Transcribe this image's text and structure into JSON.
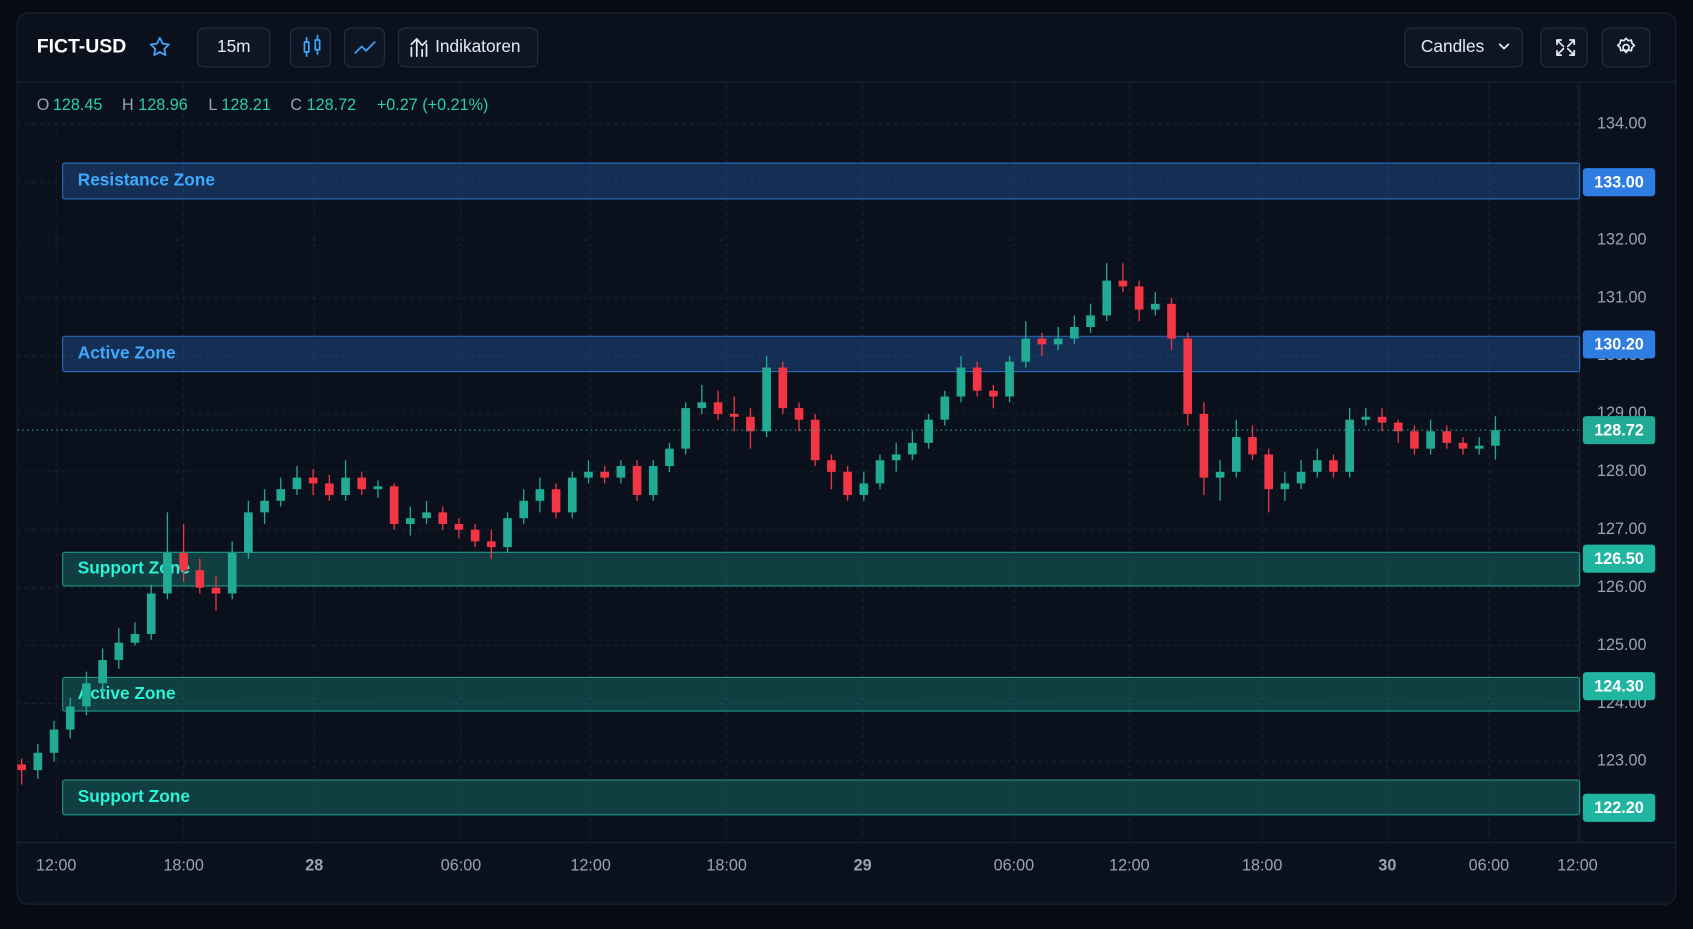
{
  "toolbar": {
    "symbol": "FICT-USD",
    "interval": "15m",
    "indicators": "Indikatoren",
    "chart_style": "Candles"
  },
  "chart_data": {
    "type": "candlestick",
    "ohlc_labels": [
      "O",
      "H",
      "L",
      "C"
    ],
    "change": "+0.27 (+0.21%)",
    "up_color": "#22ab94",
    "down_color": "#f23645",
    "ohlc": [
      [
        122.95,
        123.05,
        122.6,
        122.85
      ],
      [
        122.85,
        123.3,
        122.7,
        123.15
      ],
      [
        123.15,
        123.7,
        123.0,
        123.55
      ],
      [
        123.55,
        124.1,
        123.4,
        123.95
      ],
      [
        123.95,
        124.55,
        123.8,
        124.35
      ],
      [
        124.35,
        124.95,
        124.2,
        124.75
      ],
      [
        124.75,
        125.3,
        124.6,
        125.05
      ],
      [
        125.05,
        125.4,
        125.0,
        125.2
      ],
      [
        125.2,
        126.05,
        125.1,
        125.9
      ],
      [
        125.9,
        127.3,
        125.8,
        126.6
      ],
      [
        126.6,
        127.1,
        126.1,
        126.3
      ],
      [
        126.3,
        126.5,
        125.9,
        126.0
      ],
      [
        126.0,
        126.2,
        125.6,
        125.9
      ],
      [
        125.9,
        126.8,
        125.8,
        126.6
      ],
      [
        126.6,
        127.5,
        126.5,
        127.3
      ],
      [
        127.3,
        127.7,
        127.1,
        127.5
      ],
      [
        127.5,
        127.9,
        127.4,
        127.7
      ],
      [
        127.7,
        128.1,
        127.6,
        127.9
      ],
      [
        127.9,
        128.05,
        127.6,
        127.8
      ],
      [
        127.8,
        127.95,
        127.5,
        127.6
      ],
      [
        127.6,
        128.2,
        127.5,
        127.9
      ],
      [
        127.9,
        128.0,
        127.6,
        127.7
      ],
      [
        127.7,
        127.85,
        127.55,
        127.75
      ],
      [
        127.75,
        127.8,
        127.0,
        127.1
      ],
      [
        127.1,
        127.4,
        126.9,
        127.2
      ],
      [
        127.2,
        127.5,
        127.1,
        127.3
      ],
      [
        127.3,
        127.4,
        127.0,
        127.1
      ],
      [
        127.1,
        127.2,
        126.85,
        127.0
      ],
      [
        127.0,
        127.1,
        126.7,
        126.8
      ],
      [
        126.8,
        127.0,
        126.5,
        126.7
      ],
      [
        126.7,
        127.3,
        126.6,
        127.2
      ],
      [
        127.2,
        127.7,
        127.1,
        127.5
      ],
      [
        127.5,
        127.9,
        127.3,
        127.7
      ],
      [
        127.7,
        127.8,
        127.2,
        127.3
      ],
      [
        127.3,
        128.0,
        127.2,
        127.9
      ],
      [
        127.9,
        128.2,
        127.8,
        128.0
      ],
      [
        128.0,
        128.1,
        127.8,
        127.9
      ],
      [
        127.9,
        128.2,
        127.8,
        128.1
      ],
      [
        128.1,
        128.2,
        127.5,
        127.6
      ],
      [
        127.6,
        128.2,
        127.5,
        128.1
      ],
      [
        128.1,
        128.5,
        128.0,
        128.4
      ],
      [
        128.4,
        129.2,
        128.3,
        129.1
      ],
      [
        129.1,
        129.5,
        129.0,
        129.2
      ],
      [
        129.2,
        129.4,
        128.9,
        129.0
      ],
      [
        129.0,
        129.3,
        128.7,
        128.95
      ],
      [
        128.95,
        129.1,
        128.4,
        128.7
      ],
      [
        128.7,
        130.0,
        128.6,
        129.8
      ],
      [
        129.8,
        129.9,
        129.0,
        129.1
      ],
      [
        129.1,
        129.2,
        128.7,
        128.9
      ],
      [
        128.9,
        129.0,
        128.1,
        128.2
      ],
      [
        128.2,
        128.3,
        127.7,
        128.0
      ],
      [
        128.0,
        128.1,
        127.5,
        127.6
      ],
      [
        127.6,
        128.0,
        127.5,
        127.8
      ],
      [
        127.8,
        128.3,
        127.7,
        128.2
      ],
      [
        128.2,
        128.5,
        128.0,
        128.3
      ],
      [
        128.3,
        128.7,
        128.2,
        128.5
      ],
      [
        128.5,
        129.0,
        128.4,
        128.9
      ],
      [
        128.9,
        129.4,
        128.8,
        129.3
      ],
      [
        129.3,
        130.0,
        129.2,
        129.8
      ],
      [
        129.8,
        129.9,
        129.3,
        129.4
      ],
      [
        129.4,
        129.5,
        129.1,
        129.3
      ],
      [
        129.3,
        130.0,
        129.2,
        129.9
      ],
      [
        129.9,
        130.6,
        129.8,
        130.3
      ],
      [
        130.3,
        130.4,
        130.0,
        130.2
      ],
      [
        130.2,
        130.5,
        130.1,
        130.3
      ],
      [
        130.3,
        130.7,
        130.2,
        130.5
      ],
      [
        130.5,
        130.9,
        130.4,
        130.7
      ],
      [
        130.7,
        131.6,
        130.6,
        131.3
      ],
      [
        131.3,
        131.6,
        131.1,
        131.2
      ],
      [
        131.2,
        131.3,
        130.6,
        130.8
      ],
      [
        130.8,
        131.1,
        130.7,
        130.9
      ],
      [
        130.9,
        131.0,
        130.1,
        130.3
      ],
      [
        130.3,
        130.4,
        128.8,
        129.0
      ],
      [
        129.0,
        129.2,
        127.6,
        127.9
      ],
      [
        127.9,
        128.2,
        127.5,
        128.0
      ],
      [
        128.0,
        128.9,
        127.9,
        128.6
      ],
      [
        128.6,
        128.8,
        128.2,
        128.3
      ],
      [
        128.3,
        128.4,
        127.3,
        127.7
      ],
      [
        127.7,
        128.0,
        127.5,
        127.8
      ],
      [
        127.8,
        128.2,
        127.7,
        128.0
      ],
      [
        128.0,
        128.4,
        127.9,
        128.2
      ],
      [
        128.2,
        128.3,
        127.9,
        128.0
      ],
      [
        128.0,
        129.1,
        127.9,
        128.9
      ],
      [
        128.9,
        129.1,
        128.8,
        128.95
      ],
      [
        128.95,
        129.1,
        128.7,
        128.85
      ],
      [
        128.85,
        128.9,
        128.5,
        128.7
      ],
      [
        128.7,
        128.8,
        128.3,
        128.4
      ],
      [
        128.4,
        128.9,
        128.3,
        128.7
      ],
      [
        128.7,
        128.8,
        128.4,
        128.5
      ],
      [
        128.5,
        128.6,
        128.3,
        128.4
      ],
      [
        128.4,
        128.6,
        128.3,
        128.45
      ],
      [
        128.45,
        128.96,
        128.21,
        128.72
      ]
    ],
    "xlim": [
      -0.27,
      96.2
    ],
    "xticks": [
      {
        "value": 2.13,
        "label": "12:00"
      },
      {
        "value": 10,
        "label": "18:00"
      },
      {
        "value": 18.07,
        "label": "28",
        "bold": true
      },
      {
        "value": 27.13,
        "label": "06:00"
      },
      {
        "value": 35.13,
        "label": "12:00"
      },
      {
        "value": 43.53,
        "label": "18:00"
      },
      {
        "value": 51.93,
        "label": "29",
        "bold": true
      },
      {
        "value": 61.27,
        "label": "06:00"
      },
      {
        "value": 68.4,
        "label": "12:00"
      },
      {
        "value": 76.6,
        "label": "18:00"
      },
      {
        "value": 84.33,
        "label": "30",
        "bold": true
      },
      {
        "value": 90.6,
        "label": "06:00"
      },
      {
        "value": 96.07,
        "label": "12:00"
      }
    ],
    "ylim": [
      121.6,
      134.69
    ],
    "yticks": [
      {
        "value": 123,
        "label": "123.00"
      },
      {
        "value": 124,
        "label": "124.00"
      },
      {
        "value": 125,
        "label": "125.00"
      },
      {
        "value": 126,
        "label": "126.00"
      },
      {
        "value": 127,
        "label": "127.00"
      },
      {
        "value": 128,
        "label": "128.00"
      },
      {
        "value": 129,
        "label": "129.00"
      },
      {
        "value": 130,
        "label": "130.00"
      },
      {
        "value": 131,
        "label": "131.00"
      },
      {
        "value": 132,
        "label": "132.00"
      },
      {
        "value": 133,
        "label": "133.00"
      },
      {
        "value": 134,
        "label": "134.00"
      }
    ],
    "grid": true,
    "zones": [
      {
        "name": "Resistance Zone",
        "from": 132.71,
        "to": 133.33,
        "value": 133,
        "value_label": "133.00",
        "color": "#2f7de1"
      },
      {
        "name": "Active Zone",
        "from": 129.73,
        "to": 130.34,
        "value": 130.2,
        "value_label": "130.20",
        "color": "#2f7de1"
      },
      {
        "name": "Support Zone",
        "from": 126.03,
        "to": 126.61,
        "value": 126.5,
        "value_label": "126.50",
        "color": "#1fb5a0"
      },
      {
        "name": "Active Zone",
        "from": 123.87,
        "to": 124.45,
        "value": 124.3,
        "value_label": "124.30",
        "color": "#1fb5a0"
      },
      {
        "name": "Support Zone",
        "from": 122.08,
        "to": 122.68,
        "value": 122.2,
        "value_label": "122.20",
        "color": "#1fb5a0"
      }
    ]
  }
}
